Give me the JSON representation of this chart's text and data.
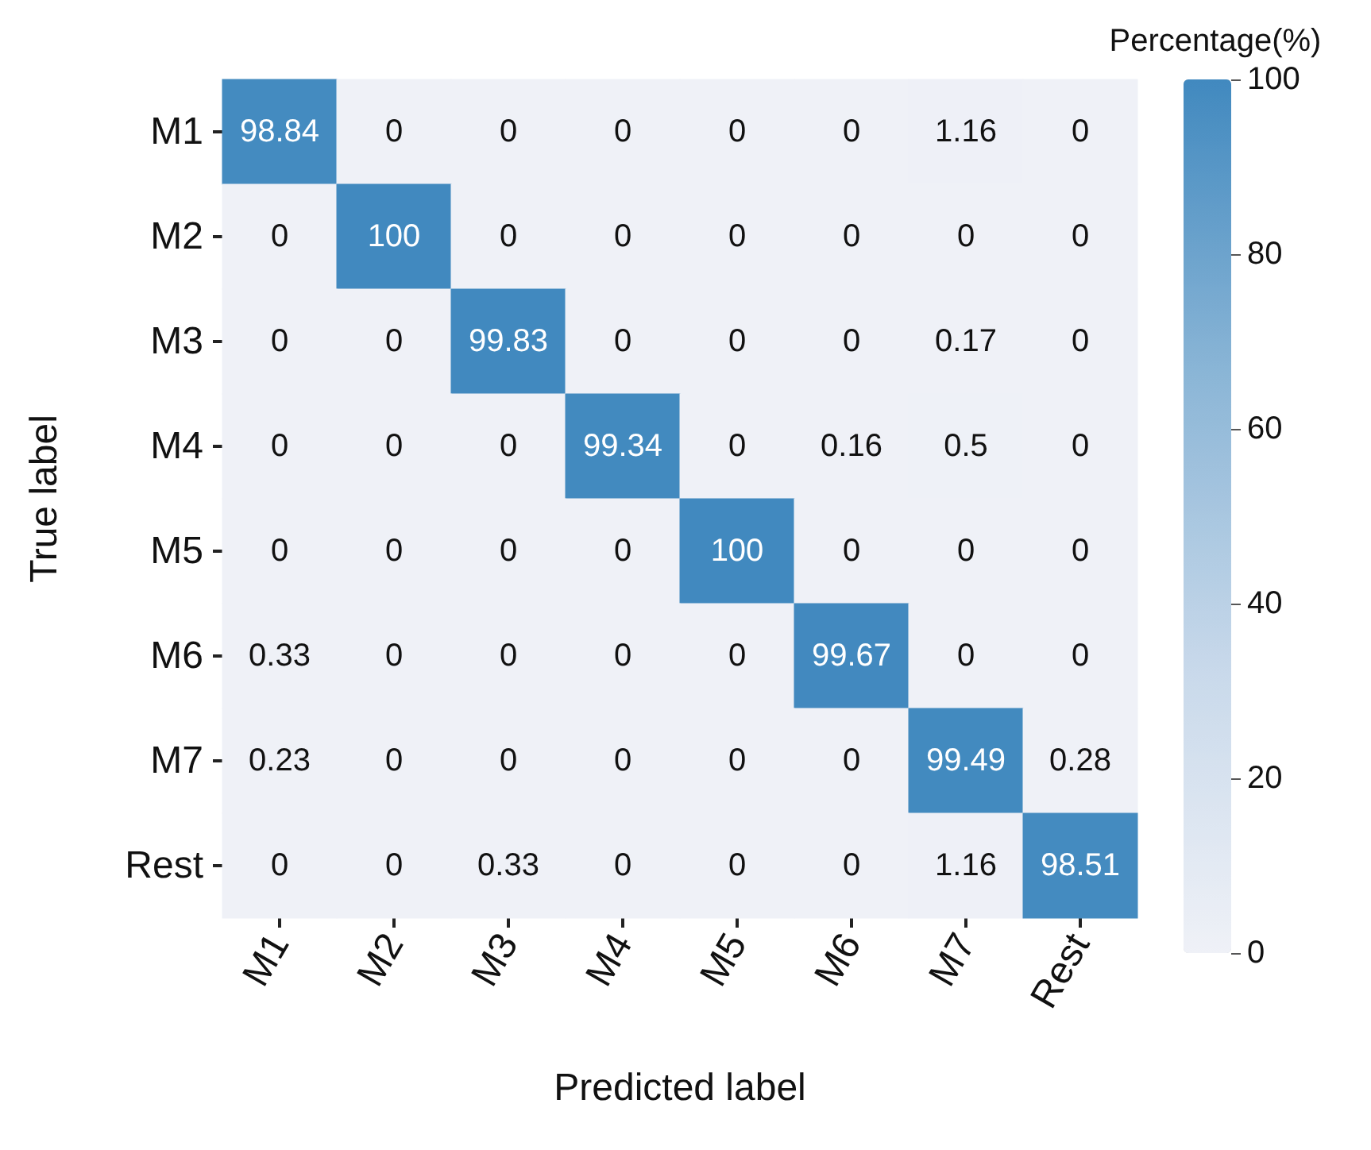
{
  "chart_data": {
    "type": "heatmap",
    "xlabel": "Predicted label",
    "ylabel": "True label",
    "clabel": "Percentage(%)",
    "categories": [
      "M1",
      "M2",
      "M3",
      "M4",
      "M5",
      "M6",
      "M7",
      "Rest"
    ],
    "y_categories": [
      "M1",
      "M2",
      "M3",
      "M4",
      "M5",
      "M6",
      "M7",
      "Rest"
    ],
    "cells": [
      [
        98.84,
        0,
        0,
        0,
        0,
        0,
        1.16,
        0
      ],
      [
        0,
        100,
        0,
        0,
        0,
        0,
        0,
        0
      ],
      [
        0,
        0,
        99.83,
        0,
        0,
        0,
        0.17,
        0
      ],
      [
        0,
        0,
        0,
        99.34,
        0,
        0.16,
        0.5,
        0
      ],
      [
        0,
        0,
        0,
        0,
        100,
        0,
        0,
        0
      ],
      [
        0.33,
        0,
        0,
        0,
        0,
        99.67,
        0,
        0
      ],
      [
        0.23,
        0,
        0,
        0,
        0,
        0,
        99.49,
        0.28
      ],
      [
        0,
        0,
        0.33,
        0,
        0,
        0,
        1.16,
        98.51
      ]
    ],
    "data_labels": true,
    "clim": [
      0,
      100
    ],
    "cticks": [
      0,
      20,
      40,
      60,
      80,
      100
    ]
  }
}
